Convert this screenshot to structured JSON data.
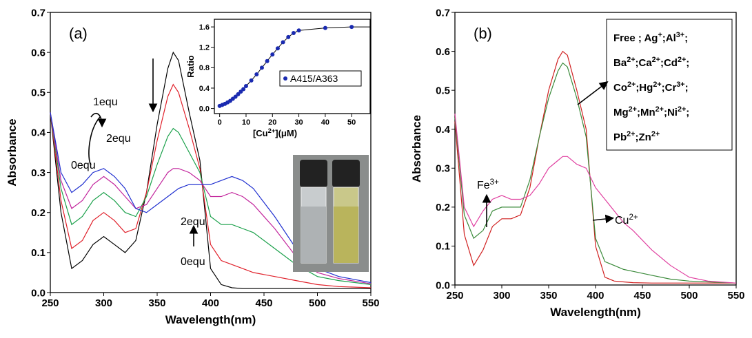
{
  "chart_data": [
    {
      "type": "line",
      "panel_label": "(a)",
      "x_label": "Wavelength(nm)",
      "y_label": "Absorbance",
      "x": [
        250,
        260,
        270,
        280,
        290,
        300,
        310,
        320,
        330,
        340,
        350,
        360,
        365,
        370,
        380,
        390,
        400,
        410,
        420,
        430,
        440,
        460,
        480,
        500,
        520,
        550
      ],
      "xlim": [
        250,
        550
      ],
      "xticks": [
        250,
        300,
        350,
        400,
        450,
        500,
        550
      ],
      "ylim": [
        0,
        0.7
      ],
      "yticks": [
        {
          "value": 0,
          "label": "0.0"
        },
        0.1,
        0.2,
        0.3,
        0.4,
        0.5,
        0.6,
        0.7
      ],
      "series": [
        {
          "color": "#000000",
          "values": [
            0.45,
            0.2,
            0.06,
            0.08,
            0.12,
            0.14,
            0.12,
            0.1,
            0.13,
            0.25,
            0.42,
            0.56,
            0.6,
            0.58,
            0.45,
            0.33,
            0.06,
            0.02,
            0.012,
            0.01,
            0.01,
            0.01,
            0.01,
            0.01,
            0.01,
            0.01
          ]
        },
        {
          "color": "#e0202a",
          "values": [
            0.45,
            0.23,
            0.11,
            0.13,
            0.18,
            0.2,
            0.18,
            0.15,
            0.16,
            0.25,
            0.38,
            0.49,
            0.52,
            0.5,
            0.41,
            0.31,
            0.12,
            0.08,
            0.07,
            0.06,
            0.05,
            0.04,
            0.03,
            0.02,
            0.015,
            0.012
          ]
        },
        {
          "color": "#1aa04a",
          "values": [
            0.45,
            0.26,
            0.17,
            0.19,
            0.23,
            0.25,
            0.23,
            0.2,
            0.19,
            0.24,
            0.32,
            0.39,
            0.41,
            0.4,
            0.35,
            0.3,
            0.19,
            0.17,
            0.17,
            0.16,
            0.15,
            0.11,
            0.07,
            0.04,
            0.03,
            0.02
          ]
        },
        {
          "color": "#c2249c",
          "values": [
            0.45,
            0.28,
            0.21,
            0.23,
            0.27,
            0.29,
            0.27,
            0.24,
            0.21,
            0.22,
            0.26,
            0.3,
            0.31,
            0.31,
            0.3,
            0.28,
            0.24,
            0.24,
            0.25,
            0.24,
            0.22,
            0.16,
            0.09,
            0.05,
            0.035,
            0.022
          ]
        },
        {
          "color": "#2030d0",
          "values": [
            0.45,
            0.3,
            0.25,
            0.27,
            0.3,
            0.31,
            0.29,
            0.26,
            0.21,
            0.2,
            0.22,
            0.24,
            0.25,
            0.26,
            0.27,
            0.27,
            0.27,
            0.28,
            0.29,
            0.28,
            0.26,
            0.19,
            0.11,
            0.06,
            0.04,
            0.025
          ]
        }
      ],
      "annotations": [
        "1equ",
        "2equ",
        "0equ",
        "2equ",
        "0equ"
      ],
      "inset": {
        "type": "scatter",
        "x_label": [
          "[Cu",
          "2+",
          "](μM)"
        ],
        "y_label": "Ratio",
        "x": [
          0,
          1,
          2,
          3,
          4,
          5,
          6,
          7,
          8,
          9,
          10,
          12,
          14,
          16,
          18,
          20,
          22,
          24,
          26,
          28,
          30,
          40,
          50
        ],
        "xlim": [
          -2,
          57
        ],
        "xticks": [
          0,
          10,
          20,
          30,
          40,
          50
        ],
        "ylim": [
          -0.1,
          1.75
        ],
        "yticks": [
          {
            "value": 0,
            "label": "0.0"
          },
          0.4,
          0.8,
          1.2,
          1.6
        ],
        "series": [
          {
            "name": "A415/A363",
            "color": "#1a2ab0",
            "values": [
              0.05,
              0.07,
              0.09,
              0.12,
              0.15,
              0.19,
              0.23,
              0.28,
              0.33,
              0.38,
              0.44,
              0.55,
              0.67,
              0.8,
              0.93,
              1.06,
              1.18,
              1.3,
              1.4,
              1.48,
              1.53,
              1.58,
              1.6
            ]
          }
        ]
      }
    },
    {
      "type": "line",
      "panel_label": "(b)",
      "x_label": "Wavelength(nm)",
      "y_label": "Absorbance",
      "x": [
        250,
        260,
        270,
        280,
        290,
        300,
        310,
        320,
        330,
        340,
        350,
        360,
        365,
        370,
        380,
        390,
        400,
        410,
        420,
        430,
        440,
        460,
        480,
        500,
        520,
        550
      ],
      "xlim": [
        250,
        550
      ],
      "xticks": [
        250,
        300,
        350,
        400,
        450,
        500,
        550
      ],
      "ylim": [
        0,
        0.7
      ],
      "yticks": [
        {
          "value": 0,
          "label": "0.0"
        },
        0.1,
        0.2,
        0.3,
        0.4,
        0.5,
        0.6,
        0.7
      ],
      "series": [
        {
          "color": "#d02020",
          "values": [
            0.42,
            0.13,
            0.05,
            0.09,
            0.15,
            0.17,
            0.17,
            0.18,
            0.25,
            0.38,
            0.5,
            0.58,
            0.6,
            0.59,
            0.5,
            0.4,
            0.1,
            0.02,
            0.01,
            0.008,
            0.006,
            0.005,
            0.005,
            0.005,
            0.005,
            0.005
          ]
        },
        {
          "color": "#3a8a3a",
          "values": [
            0.43,
            0.18,
            0.12,
            0.14,
            0.19,
            0.2,
            0.2,
            0.2,
            0.27,
            0.38,
            0.48,
            0.55,
            0.57,
            0.56,
            0.48,
            0.38,
            0.12,
            0.06,
            0.05,
            0.04,
            0.035,
            0.025,
            0.015,
            0.01,
            0.008,
            0.005
          ]
        },
        {
          "color": "#e040a0",
          "values": [
            0.44,
            0.2,
            0.15,
            0.19,
            0.22,
            0.23,
            0.22,
            0.22,
            0.23,
            0.26,
            0.3,
            0.32,
            0.33,
            0.33,
            0.31,
            0.3,
            0.25,
            0.22,
            0.19,
            0.16,
            0.14,
            0.09,
            0.05,
            0.02,
            0.01,
            0.005
          ]
        }
      ],
      "legend_lines": [
        [
          "Free ;  Ag",
          "+",
          ";Al",
          "3+",
          ";"
        ],
        [
          "Ba",
          "2+",
          ";Ca",
          "2+",
          ";Cd",
          "2+",
          ";"
        ],
        [
          "Co",
          "2+",
          ";Hg",
          "2+",
          ";Cr",
          "3+",
          ";"
        ],
        [
          "Mg",
          "2+",
          ";Mn",
          "2+",
          ";Ni",
          "2+",
          ";"
        ],
        [
          "Pb",
          "2+",
          ";Zn",
          "2+"
        ]
      ],
      "annotations": [
        [
          "Fe",
          "3+"
        ],
        [
          "Cu",
          "2+"
        ]
      ]
    }
  ]
}
